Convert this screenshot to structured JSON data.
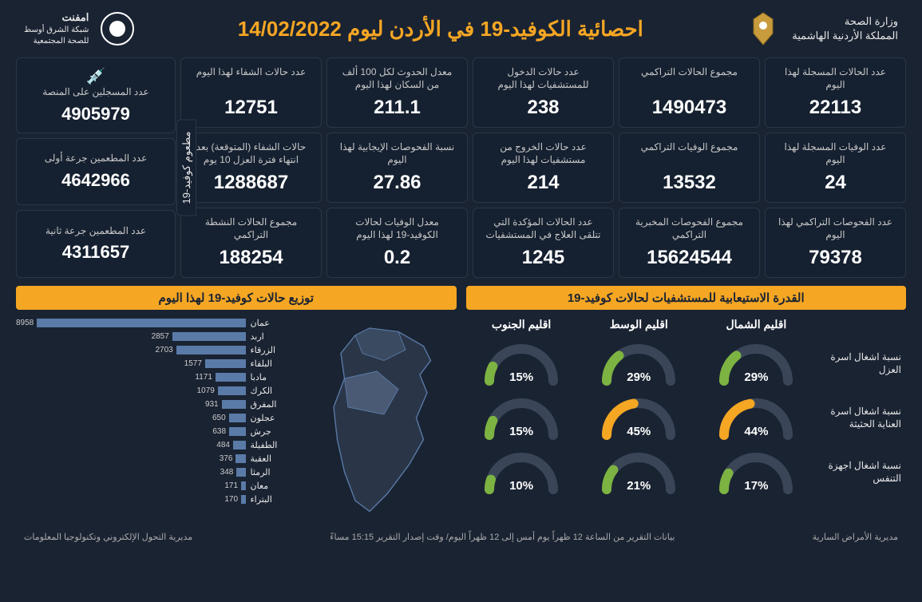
{
  "colors": {
    "bg": "#1a2332",
    "card_bg": "#152030",
    "border": "#2a3648",
    "accent": "#f5a623",
    "bar": "#5a7ba8",
    "gauge_track": "#3a4658",
    "gauge_green": "#7cb342",
    "gauge_orange": "#f5a623"
  },
  "header": {
    "title": "احصائية الكوفيد-19 في الأردن ليوم 14/02/2022",
    "right_line1": "وزارة الصحة",
    "right_line2": "المملكة الأردنية الهاشمية",
    "left_line1": "امفنت",
    "left_line2": "شبكة الشرق أوسط",
    "left_line3": "للصحة المجتمعية"
  },
  "cards": [
    {
      "label": "عدد الحالات المسجلة لهذا اليوم",
      "value": "22113"
    },
    {
      "label": "مجموع الحالات التراكمي",
      "value": "1490473"
    },
    {
      "label": "عدد حالات الدخول للمستشفيات لهذا اليوم",
      "value": "238"
    },
    {
      "label": "معدل الحدوث لكل 100 ألف من السكان لهذا اليوم",
      "value": "211.1"
    },
    {
      "label": "عدد حالات الشفاء لهذا اليوم",
      "value": "12751"
    },
    {
      "label": "عدد الوفيات المسجلة لهذا اليوم",
      "value": "24"
    },
    {
      "label": "مجموع الوفيات التراكمي",
      "value": "13532"
    },
    {
      "label": "عدد حالات الخروج من مستشفيات لهذا اليوم",
      "value": "214"
    },
    {
      "label": "نسبة الفحوصات الإيجابية لهذا اليوم",
      "value": "27.86"
    },
    {
      "label": "حالات الشفاء (المتوقعة) بعد انتهاء فترة العزل 10 يوم",
      "value": "1288687"
    },
    {
      "label": "عدد الفحوصات التراكمي لهذا اليوم",
      "value": "79378"
    },
    {
      "label": "مجموع الفحوصات المخبرية التراكمي",
      "value": "15624544"
    },
    {
      "label": "عدد الحالات المؤكدة التي تتلقى العلاج في المستشفيات",
      "value": "1245"
    },
    {
      "label": "معدل الوفيات لحالات الكوفيد-19 لهذا اليوم",
      "value": "0.2"
    },
    {
      "label": "مجموع الحالات النشطة التراكمي",
      "value": "188254"
    }
  ],
  "vax": {
    "tab": "مطعوم كوفيد-19",
    "cards": [
      {
        "label": "عدد المسجلين على المنصة",
        "value": "4905979"
      },
      {
        "label": "عدد المطعمين جرعة أولى",
        "value": "4642966"
      },
      {
        "label": "عدد المطعمين جرعة ثانية",
        "value": "4311657"
      }
    ]
  },
  "capacity": {
    "title": "القدرة الاستيعابية للمستشفيات لحالات كوفيد-19",
    "regions": [
      "اقليم الشمال",
      "اقليم الوسط",
      "اقليم الجنوب"
    ],
    "rows": [
      {
        "label": "نسبة اشغال اسرة العزل",
        "values": [
          29,
          29,
          15
        ],
        "colors": [
          "#7cb342",
          "#7cb342",
          "#7cb342"
        ]
      },
      {
        "label": "نسبة اشغال اسرة العناية الحثيثة",
        "values": [
          44,
          45,
          15
        ],
        "colors": [
          "#f5a623",
          "#f5a623",
          "#7cb342"
        ]
      },
      {
        "label": "نسبة اشغال اجهزة التنفس",
        "values": [
          17,
          21,
          10
        ],
        "colors": [
          "#7cb342",
          "#7cb342",
          "#7cb342"
        ]
      }
    ]
  },
  "distribution": {
    "title": "توزيع حالات كوفيد-19 لهذا اليوم",
    "max": 8958,
    "items": [
      {
        "name": "عمان",
        "value": 8958
      },
      {
        "name": "اربد",
        "value": 2857
      },
      {
        "name": "الزرقاء",
        "value": 2703
      },
      {
        "name": "البلقاء",
        "value": 1577
      },
      {
        "name": "مادبا",
        "value": 1171
      },
      {
        "name": "الكرك",
        "value": 1079
      },
      {
        "name": "المفرق",
        "value": 931
      },
      {
        "name": "عجلون",
        "value": 650
      },
      {
        "name": "جرش",
        "value": 638
      },
      {
        "name": "الطفيلة",
        "value": 484
      },
      {
        "name": "العقبة",
        "value": 376
      },
      {
        "name": "الرمثا",
        "value": 348
      },
      {
        "name": "معان",
        "value": 171
      },
      {
        "name": "البتراء",
        "value": 170
      }
    ]
  },
  "footer": {
    "right": "مديرية الأمراض السارية",
    "center": "بيانات التقرير من الساعة 12 ظهراً يوم أمس إلى 12 ظهراً اليوم/ وقت إصدار التقرير 15:15 مساءً",
    "left": "مديرية التحول الإلكتروني وتكنولوجيا المعلومات"
  }
}
